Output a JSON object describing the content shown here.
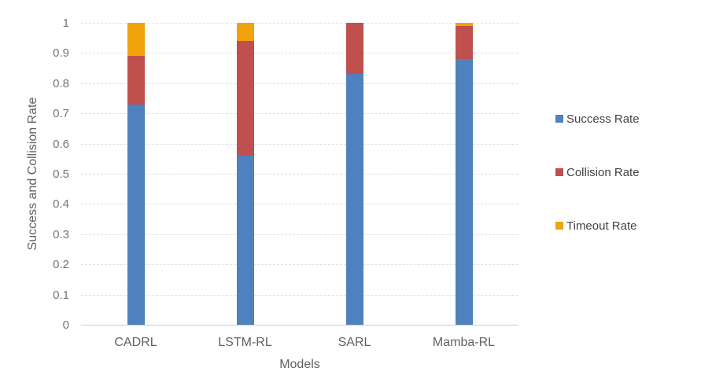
{
  "chart_data": {
    "type": "bar",
    "stacked": true,
    "categories": [
      "CADRL",
      "LSTM-RL",
      "SARL",
      "Mamba-RL"
    ],
    "series": [
      {
        "name": "Success Rate",
        "color": "#4E81BD",
        "values": [
          0.73,
          0.56,
          0.83,
          0.88
        ]
      },
      {
        "name": "Collision Rate",
        "color": "#C0504D",
        "values": [
          0.16,
          0.38,
          0.17,
          0.11
        ]
      },
      {
        "name": "Timeout Rate",
        "color": "#F0A30C",
        "values": [
          0.11,
          0.06,
          0.0,
          0.01
        ]
      }
    ],
    "xlabel": "Models",
    "ylabel": "Success and Collision Rate",
    "ylim": [
      0,
      1
    ],
    "ytick_labels": [
      "0",
      "0.1",
      "0.2",
      "0.3",
      "0.4",
      "0.5",
      "0.6",
      "0.7",
      "0.8",
      "0.9",
      "1"
    ],
    "grid": "horizontal-dashed",
    "legend_position": "right"
  },
  "colors": {
    "background": "#FFFFFF",
    "gridline": "#E0E0E0",
    "axis_line": "#CCCCCC",
    "tick_text": "#757575",
    "axis_title_text": "#616161",
    "legend_text": "#424242"
  }
}
